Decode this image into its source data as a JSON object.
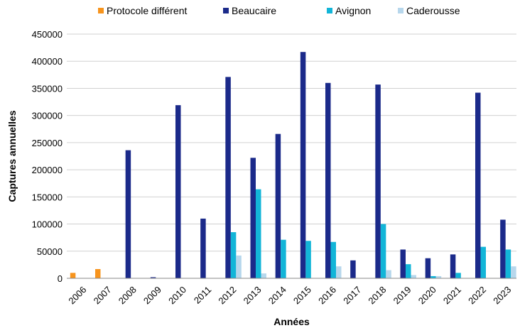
{
  "chart_data": {
    "type": "bar",
    "title": "",
    "xlabel": "Années",
    "ylabel": "Captures annuelles",
    "ylim": [
      0,
      450000
    ],
    "yticks": [
      0,
      50000,
      100000,
      150000,
      200000,
      250000,
      300000,
      350000,
      400000,
      450000
    ],
    "ytick_labels": [
      "0",
      "50000",
      "100000",
      "150000",
      "200000",
      "250000",
      "300000",
      "350000",
      "400000",
      "450000"
    ],
    "grid": true,
    "legend_position": "top",
    "categories": [
      "2006",
      "2007",
      "2008",
      "2009",
      "2010",
      "2011",
      "2012",
      "2013",
      "2014",
      "2015",
      "2016",
      "2017",
      "2018",
      "2019",
      "2020",
      "2021",
      "2022",
      "2023"
    ],
    "series": [
      {
        "name": "Protocole différent",
        "color": "#F7941D",
        "values": [
          10000,
          17000,
          0,
          0,
          0,
          0,
          0,
          0,
          0,
          0,
          0,
          0,
          0,
          0,
          0,
          0,
          0,
          0
        ]
      },
      {
        "name": "Beaucaire",
        "color": "#1B2A8A",
        "values": [
          0,
          0,
          236000,
          2000,
          319000,
          110000,
          371000,
          222000,
          266000,
          417000,
          360000,
          33000,
          357000,
          53000,
          37000,
          44000,
          342000,
          108000
        ]
      },
      {
        "name": "Avignon",
        "color": "#12B5D8",
        "values": [
          0,
          0,
          0,
          0,
          0,
          0,
          85000,
          164000,
          71000,
          69000,
          67000,
          0,
          100000,
          26000,
          4000,
          10000,
          58000,
          53000
        ]
      },
      {
        "name": "Caderousse",
        "color": "#B7D7EC",
        "values": [
          0,
          0,
          0,
          0,
          0,
          0,
          42000,
          9000,
          0,
          0,
          22000,
          0,
          15000,
          6000,
          4000,
          0,
          0,
          22000
        ]
      }
    ]
  }
}
